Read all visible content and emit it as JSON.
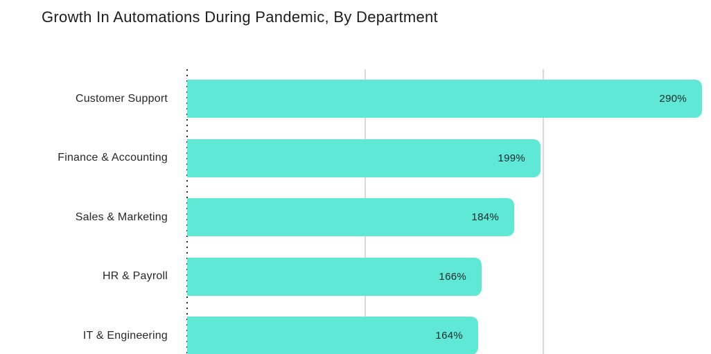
{
  "page": {
    "title": "Growth In Automations During Pandemic, By Department"
  },
  "chart_data": {
    "type": "bar",
    "orientation": "horizontal",
    "title": "Growth In Automations During Pandemic, By Department",
    "categories": [
      "Customer Support",
      "Finance & Accounting",
      "Sales & Marketing",
      "HR & Payroll",
      "IT & Engineering"
    ],
    "values": [
      290,
      199,
      184,
      166,
      164
    ],
    "value_labels": [
      "290%",
      "199%",
      "184%",
      "166%",
      "164%"
    ],
    "xlabel": "",
    "ylabel": "",
    "xlim": [
      0,
      295
    ],
    "gridlines_x": [
      100,
      200
    ],
    "grid": "vertical-gridlines-only",
    "legend": "none",
    "value_label_position": "inside-end",
    "bar_color": "#5ee8d5",
    "value_label_color": "#15282c",
    "gridline_color": "#d9d9d9",
    "axis_line_style": "dotted-zero-baseline",
    "axis_dot_color": "#282828",
    "title_color": "#1c1c1c",
    "background_color": "#ffffff"
  }
}
